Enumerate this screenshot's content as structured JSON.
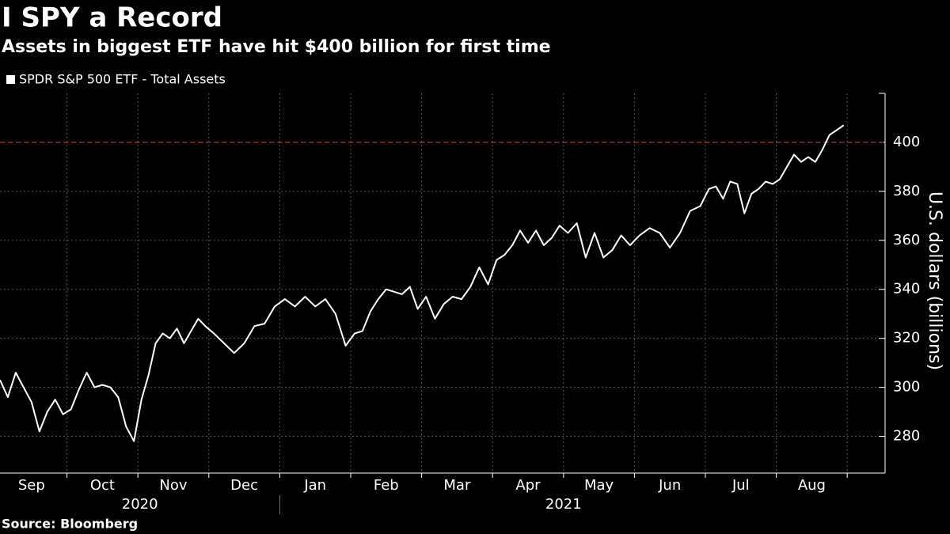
{
  "chart_data": {
    "type": "line",
    "title": "I SPY a Record",
    "subtitle": "Assets in biggest ETF have hit $400 billion for first time",
    "y_label": "U.S. dollars (billions)",
    "source": "Source: Bloomberg",
    "categories": [
      "Sep",
      "Oct",
      "Nov",
      "Dec",
      "Jan",
      "Feb",
      "Mar",
      "Apr",
      "May",
      "Jun",
      "Jul",
      "Aug"
    ],
    "years": [
      "2020",
      "2021"
    ],
    "x": [
      "2020-09",
      "2020-09",
      "2020-09",
      "2020-09",
      "2020-09",
      "2020-09",
      "2020-09",
      "2020-09",
      "2020-09",
      "2020-10",
      "2020-10",
      "2020-10",
      "2020-10",
      "2020-10",
      "2020-10",
      "2020-10",
      "2020-10",
      "2020-10",
      "2020-11",
      "2020-11",
      "2020-11",
      "2020-11",
      "2020-11",
      "2020-11",
      "2020-11",
      "2020-11",
      "2020-11",
      "2020-11",
      "2020-12",
      "2020-12",
      "2020-12",
      "2020-12",
      "2020-12",
      "2020-12",
      "2020-12",
      "2021-01",
      "2021-01",
      "2021-01",
      "2021-01",
      "2021-01",
      "2021-01",
      "2021-01",
      "2021-02",
      "2021-02",
      "2021-02",
      "2021-02",
      "2021-02",
      "2021-02",
      "2021-02",
      "2021-02",
      "2021-02",
      "2021-03",
      "2021-03",
      "2021-03",
      "2021-03",
      "2021-03",
      "2021-03",
      "2021-03",
      "2021-03",
      "2021-04",
      "2021-04",
      "2021-04",
      "2021-04",
      "2021-04",
      "2021-04",
      "2021-04",
      "2021-04",
      "2021-04",
      "2021-05",
      "2021-05",
      "2021-05",
      "2021-05",
      "2021-05",
      "2021-05",
      "2021-05",
      "2021-05",
      "2021-06",
      "2021-06",
      "2021-06",
      "2021-06",
      "2021-06",
      "2021-06",
      "2021-06",
      "2021-07",
      "2021-07",
      "2021-07",
      "2021-07",
      "2021-07",
      "2021-07",
      "2021-07",
      "2021-07",
      "2021-07",
      "2021-07",
      "2021-08",
      "2021-08",
      "2021-08",
      "2021-08",
      "2021-08",
      "2021-08",
      "2021-08",
      "2021-08",
      "2021-08",
      "2021-08"
    ],
    "series": [
      {
        "name": "SPDR S&P 500 ETF - Total Assets",
        "color": "#ffffff",
        "values": [
          303,
          296,
          306,
          300,
          294,
          282,
          290,
          295,
          289,
          291,
          299,
          306,
          300,
          301,
          300,
          296,
          284,
          278,
          295,
          305,
          318,
          322,
          320,
          324,
          318,
          323,
          328,
          325,
          322,
          318,
          314,
          318,
          325,
          326,
          333,
          336,
          333,
          337,
          333,
          336,
          330,
          317,
          322,
          323,
          331,
          336,
          340,
          339,
          338,
          341,
          332,
          337,
          328,
          334,
          337,
          336,
          341,
          349,
          342,
          352,
          354,
          358,
          364,
          359,
          364,
          358,
          361,
          366,
          363,
          367,
          353,
          363,
          353,
          356,
          362,
          358,
          362,
          365,
          363,
          357,
          363,
          372,
          374,
          381,
          382,
          377,
          384,
          383,
          371,
          379,
          381,
          384,
          383,
          385,
          390,
          395,
          392,
          394,
          392,
          397,
          403,
          405,
          407
        ]
      }
    ],
    "hline": {
      "value": 400,
      "color": "#c0392b"
    },
    "ylim": [
      265,
      420
    ],
    "yticks": [
      280,
      300,
      320,
      340,
      360,
      380,
      400
    ],
    "grid": true
  }
}
